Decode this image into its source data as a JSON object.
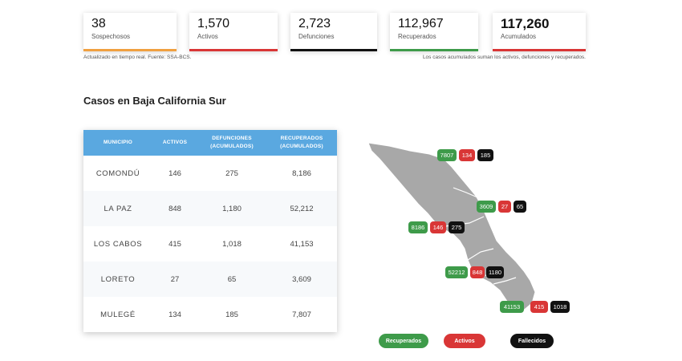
{
  "stats": [
    {
      "value": "38",
      "label": "Sospechosos",
      "color": "#f0a040"
    },
    {
      "value": "1,570",
      "label": "Activos",
      "color": "#d93636"
    },
    {
      "value": "2,723",
      "label": "Defunciones",
      "color": "#111111"
    },
    {
      "value": "112,967",
      "label": "Recuperados",
      "color": "#3e9b4a"
    },
    {
      "value": "117,260",
      "label": "Acumulados",
      "color": "#d93636"
    }
  ],
  "notes": {
    "left": "Actualizado en tiempo real. Fuente: SSA-BCS.",
    "right": "Los casos acumulados suman los activos, defunciones y recuperados."
  },
  "section_title": "Casos en Baja California Sur",
  "table": {
    "headers": [
      "MUNICIPIO",
      "ACTIVOS",
      "DEFUNCIONES\n(ACUMULADOS)",
      "RECUPERADOS\n(ACUMULADOS)"
    ],
    "rows": [
      {
        "municipio": "COMONDÚ",
        "activos": "146",
        "defunciones": "275",
        "recuperados": "8,186"
      },
      {
        "municipio": "LA PAZ",
        "activos": "848",
        "defunciones": "1,180",
        "recuperados": "52,212"
      },
      {
        "municipio": "LOS CABOS",
        "activos": "415",
        "defunciones": "1,018",
        "recuperados": "41,153"
      },
      {
        "municipio": "LORETO",
        "activos": "27",
        "defunciones": "65",
        "recuperados": "3,609"
      },
      {
        "municipio": "MULEGÉ",
        "activos": "134",
        "defunciones": "185",
        "recuperados": "7,807"
      }
    ]
  },
  "map": {
    "regions": [
      {
        "name": "mulege",
        "recuperados": "7807",
        "activos": "134",
        "fallecidos": "185"
      },
      {
        "name": "loreto",
        "recuperados": "3609",
        "activos": "27",
        "fallecidos": "65"
      },
      {
        "name": "comondu",
        "recuperados": "8186",
        "activos": "146",
        "fallecidos": "275"
      },
      {
        "name": "la-paz",
        "recuperados": "52212",
        "activos": "848",
        "fallecidos": "1180"
      },
      {
        "name": "los-cabos",
        "recuperados": "41153",
        "activos": "415",
        "fallecidos": "1018"
      }
    ]
  },
  "legend": {
    "recuperados": "Recuperados",
    "activos": "Activos",
    "fallecidos": "Fallecidos"
  },
  "colors": {
    "header_blue": "#5aa8e0",
    "green": "#3e9b4a",
    "red": "#d93636",
    "black": "#111111",
    "map_gray": "#a8a8a8"
  }
}
